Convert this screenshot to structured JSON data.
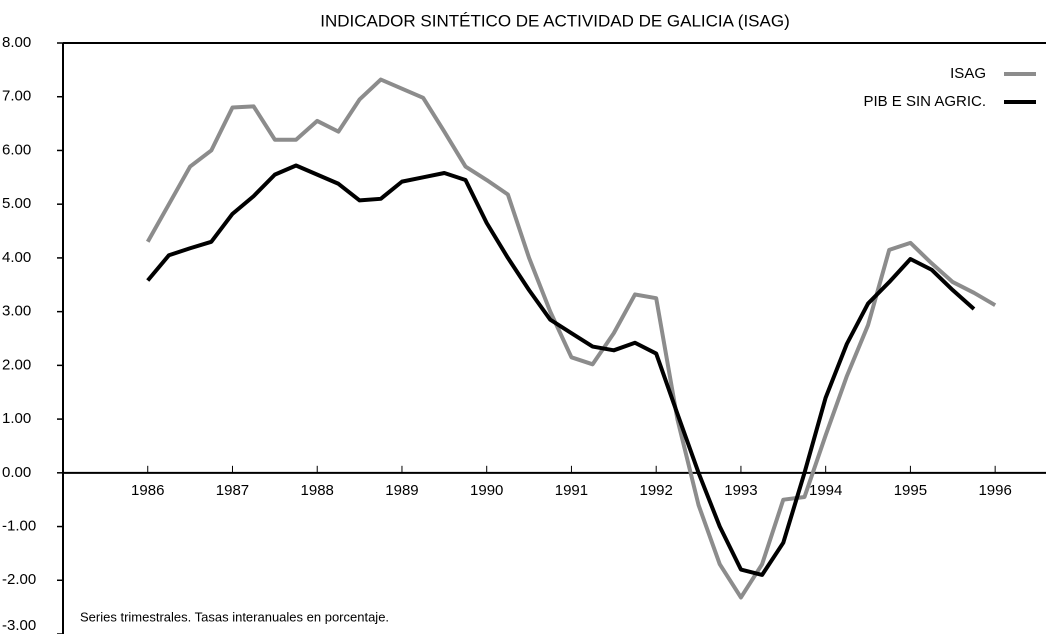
{
  "chart_data": {
    "type": "line",
    "title": "INDICADOR SINTÉTICO DE ACTIVIDAD DE GALICIA (ISAG)",
    "note": "Series trimestrales. Tasas interanuales en porcentaje.",
    "x": [
      1986.5,
      1986.75,
      1987,
      1987.25,
      1987.5,
      1987.75,
      1988,
      1988.25,
      1988.5,
      1988.75,
      1989,
      1989.25,
      1989.5,
      1989.75,
      1990,
      1990.25,
      1990.5,
      1990.75,
      1991,
      1991.25,
      1991.5,
      1991.75,
      1992,
      1992.25,
      1992.5,
      1992.75,
      1993,
      1993.25,
      1993.5,
      1993.75,
      1994,
      1994.25,
      1994.5,
      1994.75,
      1995,
      1995.25,
      1995.5,
      1995.75,
      1996,
      1996.25,
      1996.5
    ],
    "series": [
      {
        "name": "ISAG",
        "color": "#8c8c8c",
        "values": [
          4.3,
          5.0,
          5.7,
          6.0,
          6.8,
          6.82,
          6.2,
          6.2,
          6.55,
          6.35,
          6.95,
          7.32,
          7.15,
          6.98,
          6.35,
          5.7,
          5.45,
          5.18,
          4.0,
          3.0,
          2.15,
          2.02,
          2.6,
          3.32,
          3.25,
          1.0,
          -0.6,
          -1.7,
          -2.32,
          -1.7,
          -0.5,
          -0.45,
          0.7,
          1.8,
          2.75,
          4.15,
          4.28,
          3.9,
          3.55,
          3.35,
          3.12
        ]
      },
      {
        "name": "PIB E SIN AGRIC.",
        "color": "#000000",
        "values": [
          3.58,
          4.05,
          4.18,
          4.3,
          4.82,
          5.15,
          5.55,
          5.72,
          5.55,
          5.38,
          5.07,
          5.1,
          5.42,
          5.5,
          5.58,
          5.45,
          4.65,
          4.0,
          3.4,
          2.85,
          2.6,
          2.35,
          2.28,
          2.42,
          2.22,
          1.1,
          0.0,
          -1.0,
          -1.8,
          -1.9,
          -1.3,
          0.0,
          1.4,
          2.4,
          3.15,
          3.55,
          3.98,
          3.78,
          3.4,
          3.05,
          null
        ]
      }
    ],
    "xlim": [
      1985.5,
      1997.1
    ],
    "xticks": [
      {
        "value": 1986.5,
        "label": "1986"
      },
      {
        "value": 1987.5,
        "label": "1987"
      },
      {
        "value": 1988.5,
        "label": "1988"
      },
      {
        "value": 1989.5,
        "label": "1989"
      },
      {
        "value": 1990.5,
        "label": "1990"
      },
      {
        "value": 1991.5,
        "label": "1991"
      },
      {
        "value": 1992.5,
        "label": "1992"
      },
      {
        "value": 1993.5,
        "label": "1993"
      },
      {
        "value": 1994.5,
        "label": "1994"
      },
      {
        "value": 1995.5,
        "label": "1995"
      },
      {
        "value": 1996.5,
        "label": "1996"
      }
    ],
    "ylim": [
      -3,
      8
    ],
    "yticks": [
      {
        "value": -3,
        "label": "-3.00"
      },
      {
        "value": -2,
        "label": "-2.00"
      },
      {
        "value": -1,
        "label": "-1.00"
      },
      {
        "value": 0,
        "label": "0.00"
      },
      {
        "value": 1,
        "label": "1.00"
      },
      {
        "value": 2,
        "label": "2.00"
      },
      {
        "value": 3,
        "label": "3.00"
      },
      {
        "value": 4,
        "label": "4.00"
      },
      {
        "value": 5,
        "label": "5.00"
      },
      {
        "value": 6,
        "label": "6.00"
      },
      {
        "value": 7,
        "label": "7.00"
      },
      {
        "value": 8,
        "label": "8.00"
      }
    ],
    "legend": "top-right"
  }
}
